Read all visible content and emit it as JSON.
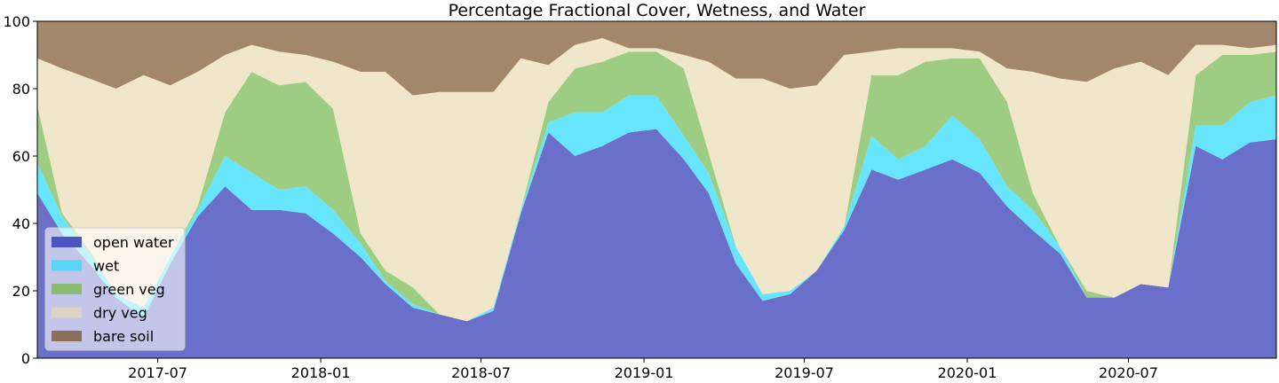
{
  "chart_data": {
    "type": "area",
    "stacked": true,
    "title": "Percentage Fractional Cover, Wetness, and Water",
    "xlabel": "",
    "ylabel": "",
    "ylim": [
      0,
      100
    ],
    "xlim": [
      "2017-02-15",
      "2020-12-15"
    ],
    "grid": false,
    "legend_position": "lower-left",
    "yticks": [
      "0",
      "20",
      "40",
      "60",
      "80",
      "100"
    ],
    "xticks": [
      {
        "date": "2017-07-01",
        "label": "2017-07"
      },
      {
        "date": "2018-01-01",
        "label": "2018-01"
      },
      {
        "date": "2018-07-01",
        "label": "2018-07"
      },
      {
        "date": "2019-01-01",
        "label": "2019-01"
      },
      {
        "date": "2019-07-01",
        "label": "2019-07"
      },
      {
        "date": "2020-01-01",
        "label": "2020-01"
      },
      {
        "date": "2020-07-01",
        "label": "2020-07"
      }
    ],
    "x": [
      "2017-02-15",
      "2017-03-15",
      "2017-04-15",
      "2017-05-15",
      "2017-06-15",
      "2017-07-15",
      "2017-08-15",
      "2017-09-15",
      "2017-10-15",
      "2017-11-15",
      "2017-12-15",
      "2018-01-15",
      "2018-02-15",
      "2018-03-15",
      "2018-04-15",
      "2018-05-15",
      "2018-06-15",
      "2018-07-15",
      "2018-08-15",
      "2018-09-15",
      "2018-10-15",
      "2018-11-15",
      "2018-12-15",
      "2019-01-15",
      "2019-02-15",
      "2019-03-15",
      "2019-04-15",
      "2019-05-15",
      "2019-06-15",
      "2019-07-15",
      "2019-08-15",
      "2019-09-15",
      "2019-10-15",
      "2019-11-15",
      "2019-12-15",
      "2020-01-15",
      "2020-02-15",
      "2020-03-15",
      "2020-04-15",
      "2020-05-15",
      "2020-06-15",
      "2020-07-15",
      "2020-08-15",
      "2020-09-15",
      "2020-10-15",
      "2020-11-15",
      "2020-12-15"
    ],
    "series": [
      {
        "name": "open water",
        "color": "#6a70c9",
        "legend_color": "#4a55c2",
        "values": [
          49,
          37,
          28,
          18,
          12,
          28,
          42,
          51,
          44,
          44,
          43,
          37,
          30,
          22,
          15,
          13,
          11,
          14,
          43,
          67,
          60,
          63,
          67,
          68,
          59,
          49,
          28,
          17,
          19,
          26,
          38,
          56,
          53,
          56,
          59,
          55,
          45,
          38,
          31,
          18,
          18,
          22,
          21,
          63,
          59,
          64,
          65
        ]
      },
      {
        "name": "wet",
        "color": "#66e5fd",
        "legend_color": "#5bd4f5",
        "values": [
          9,
          5,
          3,
          1,
          3,
          2,
          2,
          9,
          11,
          6,
          8,
          7,
          4,
          1,
          1,
          0,
          0,
          1,
          1,
          3,
          13,
          10,
          11,
          10,
          7,
          6,
          5,
          2,
          1,
          0,
          1,
          10,
          6,
          7,
          13,
          10,
          6,
          6,
          2,
          0,
          0,
          0,
          0,
          6,
          10,
          12,
          13
        ]
      },
      {
        "name": "green veg",
        "color": "#9dcd82",
        "legend_color": "#8bba75",
        "values": [
          17,
          1,
          1,
          0,
          0,
          0,
          1,
          13,
          30,
          31,
          31,
          30,
          3,
          3,
          5,
          0,
          0,
          0,
          0,
          6,
          13,
          15,
          13,
          13,
          20,
          6,
          0,
          0,
          0,
          0,
          0,
          18,
          25,
          25,
          17,
          24,
          25,
          5,
          0,
          2,
          0,
          0,
          0,
          15,
          21,
          14,
          13
        ]
      },
      {
        "name": "dry veg",
        "color": "#f0e6ca",
        "legend_color": "#ddd3c2",
        "values": [
          14,
          43,
          51,
          61,
          69,
          51,
          40,
          17,
          8,
          10,
          8,
          14,
          48,
          59,
          57,
          66,
          68,
          64,
          45,
          11,
          7,
          7,
          1,
          1,
          4,
          27,
          50,
          64,
          60,
          55,
          51,
          7,
          8,
          4,
          3,
          2,
          10,
          36,
          50,
          62,
          68,
          66,
          63,
          9,
          3,
          2,
          2
        ]
      },
      {
        "name": "bare soil",
        "color": "#a3876a",
        "legend_color": "#8c6f5a",
        "values": [
          11,
          14,
          17,
          20,
          16,
          19,
          15,
          10,
          7,
          9,
          10,
          12,
          15,
          15,
          22,
          21,
          21,
          21,
          11,
          13,
          7,
          5,
          8,
          8,
          10,
          12,
          17,
          17,
          20,
          19,
          10,
          9,
          8,
          8,
          8,
          9,
          14,
          15,
          17,
          18,
          14,
          12,
          16,
          7,
          7,
          8,
          7
        ]
      }
    ]
  }
}
